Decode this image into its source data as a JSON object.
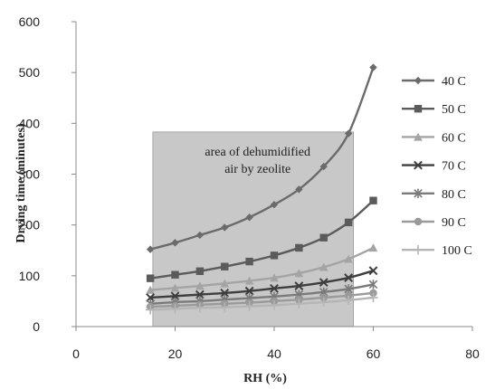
{
  "chart_data": {
    "type": "line",
    "xlabel": "RH (%)",
    "ylabel": "Drying time (minutes)",
    "xlim": [
      0,
      80
    ],
    "ylim": [
      0,
      600
    ],
    "xticks": [
      0,
      20,
      40,
      60,
      80
    ],
    "yticks": [
      0,
      100,
      200,
      300,
      400,
      500,
      600
    ],
    "x": [
      15,
      20,
      25,
      30,
      35,
      40,
      45,
      50,
      55,
      60
    ],
    "series": [
      {
        "name": "40 C",
        "marker": "diamond",
        "color": "#6b6b6b",
        "values": [
          152,
          165,
          180,
          195,
          215,
          240,
          270,
          315,
          380,
          510
        ]
      },
      {
        "name": "50 C",
        "marker": "square",
        "color": "#5b5b5b",
        "values": [
          95,
          102,
          109,
          118,
          128,
          140,
          155,
          175,
          205,
          248
        ]
      },
      {
        "name": "60 C",
        "marker": "triangle",
        "color": "#a4a4a4",
        "values": [
          72,
          76,
          80,
          85,
          90,
          96,
          105,
          117,
          133,
          155
        ]
      },
      {
        "name": "70 C",
        "marker": "x",
        "color": "#3e3e3e",
        "values": [
          57,
          60,
          63,
          66,
          70,
          75,
          80,
          87,
          96,
          110
        ]
      },
      {
        "name": "80 C",
        "marker": "asterisk",
        "color": "#7a7a7a",
        "values": [
          45,
          48,
          50,
          53,
          56,
          59,
          63,
          68,
          74,
          83
        ]
      },
      {
        "name": "90 C",
        "marker": "circle",
        "color": "#9a9a9a",
        "values": [
          39,
          41,
          43,
          45,
          47,
          50,
          53,
          57,
          61,
          66
        ]
      },
      {
        "name": "100 C",
        "marker": "plus",
        "color": "#b5b5b5",
        "values": [
          33,
          35,
          37,
          38,
          40,
          42,
          45,
          48,
          52,
          57
        ]
      }
    ],
    "annotation": {
      "lines": [
        "area of dehumidified",
        "air by zeolite"
      ],
      "x_range": [
        15.5,
        56
      ],
      "y_range": [
        0,
        383
      ],
      "fill": "#c8c8c8"
    },
    "legend_position": "right",
    "grid": false
  }
}
